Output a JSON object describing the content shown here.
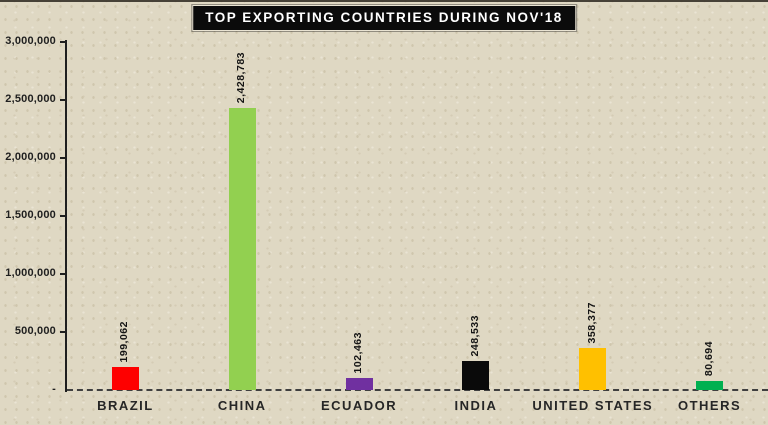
{
  "chart_data": {
    "type": "bar",
    "title": "TOP EXPORTING COUNTRIES DURING NOV'18",
    "categories": [
      "BRAZIL",
      "CHINA",
      "ECUADOR",
      "INDIA",
      "UNITED STATES",
      "OTHERS"
    ],
    "values": [
      199062,
      2428783,
      102463,
      248533,
      358377,
      80694
    ],
    "value_labels": [
      "199,062",
      "2,428,783",
      "102,463",
      "248,533",
      "358,377",
      "80,694"
    ],
    "bar_colors": [
      "#FE0000",
      "#92D050",
      "#7030A0",
      "#0A0A0A",
      "#FFC000",
      "#00B050"
    ],
    "xlabel": "",
    "ylabel": "",
    "ylim": [
      0,
      3000000
    ],
    "y_ticks": [
      {
        "value": 3000000,
        "label": "3,000,000"
      },
      {
        "value": 2500000,
        "label": "2,500,000"
      },
      {
        "value": 2000000,
        "label": "2,000,000"
      },
      {
        "value": 1500000,
        "label": "1,500,000"
      },
      {
        "value": 1000000,
        "label": "1,000,000"
      },
      {
        "value": 500000,
        "label": "500,000"
      },
      {
        "value": 0,
        "label": "-"
      }
    ],
    "grid": false,
    "legend": false
  },
  "colors": {
    "background": "#DFD8C3",
    "title_bg": "#0B0B0B",
    "title_text": "#FFFFFF",
    "axis": "#1F1F1F",
    "tick_label": "#1F1F1F",
    "value_label": "#141414",
    "category_label": "#262626",
    "baseline_dash": "#3F3F3F"
  }
}
